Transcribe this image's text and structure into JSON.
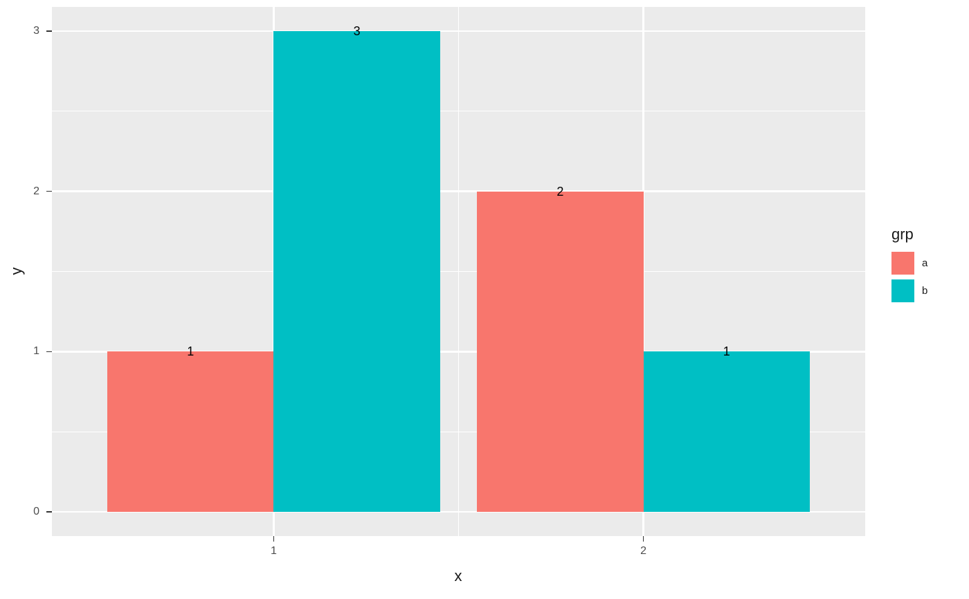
{
  "chart_data": {
    "type": "bar",
    "title": "",
    "xlabel": "x",
    "ylabel": "y",
    "categories": [
      "1",
      "2"
    ],
    "series": [
      {
        "name": "a",
        "color": "#F8766D",
        "values": [
          1,
          2
        ],
        "value_labels": [
          "1",
          "2"
        ]
      },
      {
        "name": "b",
        "color": "#00BFC4",
        "values": [
          3,
          1
        ],
        "value_labels": [
          "3",
          "1"
        ]
      }
    ],
    "y_ticks": [
      0,
      1,
      2,
      3
    ],
    "ylim": [
      0,
      3
    ],
    "grid": true,
    "legend": {
      "title": "grp",
      "position": "right"
    },
    "colors": {
      "panel_background": "#EBEBEB",
      "gridline": "#FFFFFF",
      "tick_text": "#4D4D4D",
      "label_text": "#000000"
    }
  }
}
